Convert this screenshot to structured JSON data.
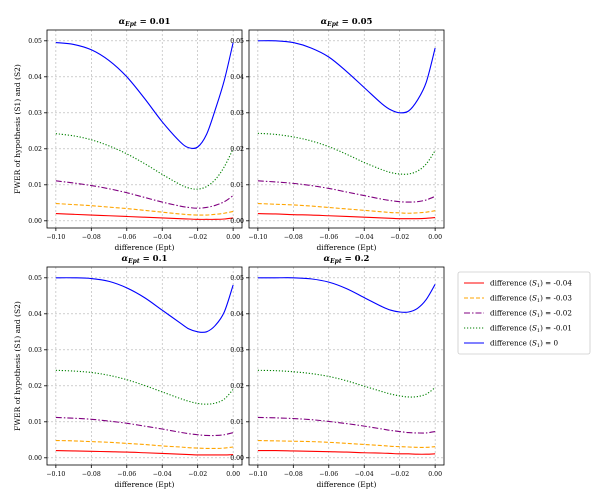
{
  "chart_data": [
    {
      "type": "line",
      "title": "α_Ept = 0.01",
      "title_base": "α",
      "title_sub": "Ept",
      "title_value": " = 0.01",
      "xlabel": "difference (Ept)",
      "ylabel": "FWER of hypothesis (S1) and (S2)",
      "xlim": [
        -0.105,
        0.005
      ],
      "ylim": [
        -0.002,
        0.053
      ],
      "xticks": [
        -0.1,
        -0.08,
        -0.06,
        -0.04,
        -0.02,
        0.0
      ],
      "xtick_labels": [
        "−0.10",
        "−0.08",
        "−0.06",
        "−0.04",
        "−0.02",
        "0.00"
      ],
      "yticks": [
        0.0,
        0.01,
        0.02,
        0.03,
        0.04,
        0.05
      ],
      "ytick_labels": [
        "0.00",
        "0.01",
        "0.02",
        "0.03",
        "0.04",
        "0.05"
      ],
      "grid": true,
      "x": [
        -0.1,
        -0.09,
        -0.08,
        -0.07,
        -0.06,
        -0.05,
        -0.04,
        -0.03,
        -0.025,
        -0.02,
        -0.015,
        -0.01,
        -0.005,
        0.0
      ],
      "series": [
        {
          "name": "difference (S1) = -0.04",
          "values": [
            0.002,
            0.0018,
            0.0016,
            0.0014,
            0.0012,
            0.001,
            0.0008,
            0.0006,
            0.0005,
            0.0004,
            0.0004,
            0.0004,
            0.0005,
            0.0008
          ]
        },
        {
          "name": "difference (S1) = -0.03",
          "values": [
            0.0048,
            0.0045,
            0.0042,
            0.0038,
            0.0034,
            0.0029,
            0.0024,
            0.0019,
            0.0017,
            0.0016,
            0.0016,
            0.0018,
            0.0021,
            0.0026
          ]
        },
        {
          "name": "difference (S1) = -0.02",
          "values": [
            0.0111,
            0.0105,
            0.0098,
            0.0089,
            0.0078,
            0.0065,
            0.0052,
            0.0041,
            0.0037,
            0.0035,
            0.0037,
            0.0043,
            0.0053,
            0.007
          ]
        },
        {
          "name": "difference (S1) = -0.01",
          "values": [
            0.0242,
            0.0236,
            0.0225,
            0.0208,
            0.0186,
            0.0159,
            0.0129,
            0.0101,
            0.0091,
            0.0088,
            0.0095,
            0.0115,
            0.015,
            0.02
          ]
        },
        {
          "name": "difference (S1) = 0",
          "values": [
            0.0495,
            0.049,
            0.0475,
            0.0445,
            0.04,
            0.034,
            0.0275,
            0.022,
            0.0203,
            0.0205,
            0.024,
            0.031,
            0.039,
            0.0495
          ]
        }
      ]
    },
    {
      "type": "line",
      "title": "α_Ept = 0.05",
      "title_base": "α",
      "title_sub": "Ept",
      "title_value": " = 0.05",
      "xlabel": "difference (Ept)",
      "ylabel": "",
      "xlim": [
        -0.105,
        0.005
      ],
      "ylim": [
        -0.002,
        0.053
      ],
      "xticks": [
        -0.1,
        -0.08,
        -0.06,
        -0.04,
        -0.02,
        0.0
      ],
      "xtick_labels": [
        "−0.10",
        "−0.08",
        "−0.06",
        "−0.04",
        "−0.02",
        "0.00"
      ],
      "yticks": [
        0.0,
        0.01,
        0.02,
        0.03,
        0.04,
        0.05
      ],
      "ytick_labels": [
        "0.00",
        "0.01",
        "0.02",
        "0.03",
        "0.04",
        "0.05"
      ],
      "grid": true,
      "x": [
        -0.1,
        -0.09,
        -0.08,
        -0.07,
        -0.06,
        -0.05,
        -0.04,
        -0.03,
        -0.025,
        -0.02,
        -0.015,
        -0.01,
        -0.005,
        0.0
      ],
      "series": [
        {
          "name": "difference (S1) = -0.04",
          "values": [
            0.002,
            0.0019,
            0.0017,
            0.0016,
            0.0014,
            0.0012,
            0.001,
            0.0008,
            0.0007,
            0.0006,
            0.0006,
            0.0006,
            0.0007,
            0.0009
          ]
        },
        {
          "name": "difference (S1) = -0.03",
          "values": [
            0.0048,
            0.0046,
            0.0044,
            0.0041,
            0.0037,
            0.0033,
            0.0029,
            0.0025,
            0.0023,
            0.0022,
            0.0021,
            0.0022,
            0.0024,
            0.0028
          ]
        },
        {
          "name": "difference (S1) = -0.02",
          "values": [
            0.0111,
            0.0108,
            0.0104,
            0.0098,
            0.009,
            0.008,
            0.007,
            0.006,
            0.0056,
            0.0053,
            0.0052,
            0.0053,
            0.0058,
            0.0068
          ]
        },
        {
          "name": "difference (S1) = -0.01",
          "values": [
            0.0243,
            0.024,
            0.0233,
            0.0222,
            0.0206,
            0.0185,
            0.0162,
            0.0142,
            0.0134,
            0.013,
            0.013,
            0.0138,
            0.0158,
            0.0195
          ]
        },
        {
          "name": "difference (S1) = 0",
          "values": [
            0.05,
            0.05,
            0.0495,
            0.048,
            0.0455,
            0.0415,
            0.037,
            0.0325,
            0.0308,
            0.03,
            0.0305,
            0.0335,
            0.0385,
            0.048
          ]
        }
      ]
    },
    {
      "type": "line",
      "title": "α_Ept = 0.1",
      "title_base": "α",
      "title_sub": "Ept",
      "title_value": " = 0.1",
      "xlabel": "difference (Ept)",
      "ylabel": "FWER of hypothesis (S1) and (S2)",
      "xlim": [
        -0.105,
        0.005
      ],
      "ylim": [
        -0.002,
        0.053
      ],
      "xticks": [
        -0.1,
        -0.08,
        -0.06,
        -0.04,
        -0.02,
        0.0
      ],
      "xtick_labels": [
        "−0.10",
        "−0.08",
        "−0.06",
        "−0.04",
        "−0.02",
        "0.00"
      ],
      "yticks": [
        0.0,
        0.01,
        0.02,
        0.03,
        0.04,
        0.05
      ],
      "ytick_labels": [
        "0.00",
        "0.01",
        "0.02",
        "0.03",
        "0.04",
        "0.05"
      ],
      "grid": true,
      "x": [
        -0.1,
        -0.09,
        -0.08,
        -0.07,
        -0.06,
        -0.05,
        -0.04,
        -0.03,
        -0.025,
        -0.02,
        -0.015,
        -0.01,
        -0.005,
        0.0
      ],
      "series": [
        {
          "name": "difference (S1) = -0.04",
          "values": [
            0.002,
            0.0019,
            0.0018,
            0.0017,
            0.0016,
            0.0014,
            0.0012,
            0.001,
            0.0009,
            0.0008,
            0.0008,
            0.0008,
            0.0008,
            0.0009
          ]
        },
        {
          "name": "difference (S1) = -0.03",
          "values": [
            0.0048,
            0.0047,
            0.0045,
            0.0043,
            0.004,
            0.0037,
            0.0033,
            0.003,
            0.0028,
            0.0027,
            0.0026,
            0.0026,
            0.0027,
            0.003
          ]
        },
        {
          "name": "difference (S1) = -0.02",
          "values": [
            0.0112,
            0.011,
            0.0107,
            0.0102,
            0.0096,
            0.0088,
            0.008,
            0.0071,
            0.0067,
            0.0064,
            0.0062,
            0.0062,
            0.0064,
            0.007
          ]
        },
        {
          "name": "difference (S1) = -0.01",
          "values": [
            0.0243,
            0.0241,
            0.0237,
            0.0229,
            0.0217,
            0.0201,
            0.0183,
            0.0165,
            0.0157,
            0.0151,
            0.0149,
            0.0152,
            0.0163,
            0.019
          ]
        },
        {
          "name": "difference (S1) = 0",
          "values": [
            0.05,
            0.05,
            0.0498,
            0.049,
            0.0472,
            0.0445,
            0.041,
            0.0375,
            0.0358,
            0.035,
            0.035,
            0.0368,
            0.0405,
            0.048
          ]
        }
      ]
    },
    {
      "type": "line",
      "title": "α_Ept = 0.2",
      "title_base": "α",
      "title_sub": "Ept",
      "title_value": " = 0.2",
      "xlabel": "difference (Ept)",
      "ylabel": "",
      "xlim": [
        -0.105,
        0.005
      ],
      "ylim": [
        -0.002,
        0.053
      ],
      "xticks": [
        -0.1,
        -0.08,
        -0.06,
        -0.04,
        -0.02,
        0.0
      ],
      "xtick_labels": [
        "−0.10",
        "−0.08",
        "−0.06",
        "−0.04",
        "−0.02",
        "0.00"
      ],
      "yticks": [
        0.0,
        0.01,
        0.02,
        0.03,
        0.04,
        0.05
      ],
      "ytick_labels": [
        "0.00",
        "0.01",
        "0.02",
        "0.03",
        "0.04",
        "0.05"
      ],
      "grid": true,
      "x": [
        -0.1,
        -0.09,
        -0.08,
        -0.07,
        -0.06,
        -0.05,
        -0.04,
        -0.03,
        -0.025,
        -0.02,
        -0.015,
        -0.01,
        -0.005,
        0.0
      ],
      "series": [
        {
          "name": "difference (S1) = -0.04",
          "values": [
            0.002,
            0.002,
            0.0019,
            0.0018,
            0.0017,
            0.0016,
            0.0014,
            0.0013,
            0.0012,
            0.0011,
            0.0011,
            0.001,
            0.001,
            0.0011
          ]
        },
        {
          "name": "difference (S1) = -0.03",
          "values": [
            0.0048,
            0.0047,
            0.0046,
            0.0045,
            0.0043,
            0.004,
            0.0037,
            0.0034,
            0.0032,
            0.0031,
            0.003,
            0.0029,
            0.0029,
            0.0031
          ]
        },
        {
          "name": "difference (S1) = -0.02",
          "values": [
            0.0112,
            0.0111,
            0.0109,
            0.0106,
            0.0101,
            0.0095,
            0.0088,
            0.008,
            0.0076,
            0.0073,
            0.007,
            0.0069,
            0.0069,
            0.0073
          ]
        },
        {
          "name": "difference (S1) = -0.01",
          "values": [
            0.0243,
            0.0242,
            0.0239,
            0.0234,
            0.0226,
            0.0214,
            0.0199,
            0.0184,
            0.0177,
            0.0172,
            0.0169,
            0.017,
            0.0177,
            0.0195
          ]
        },
        {
          "name": "difference (S1) = 0",
          "values": [
            0.05,
            0.05,
            0.05,
            0.0497,
            0.0488,
            0.047,
            0.0445,
            0.042,
            0.041,
            0.0405,
            0.0405,
            0.0415,
            0.044,
            0.0482
          ]
        }
      ]
    }
  ],
  "legend": {
    "placement": "right",
    "entries": [
      {
        "label": "difference (S1) = -0.04",
        "base": "difference (",
        "sym": "S",
        "sub": "1",
        "tail": ") = -0.04",
        "color": "#ff0000",
        "dash": "solid"
      },
      {
        "label": "difference (S1) = -0.03",
        "base": "difference (",
        "sym": "S",
        "sub": "1",
        "tail": ") = -0.03",
        "color": "#ffa500",
        "dash": "dashed"
      },
      {
        "label": "difference (S1) = -0.02",
        "base": "difference (",
        "sym": "S",
        "sub": "1",
        "tail": ") = -0.02",
        "color": "#800080",
        "dash": "dashdot"
      },
      {
        "label": "difference (S1) = -0.01",
        "base": "difference (",
        "sym": "S",
        "sub": "1",
        "tail": ") = -0.01",
        "color": "#008000",
        "dash": "dotted"
      },
      {
        "label": "difference (S1) = 0",
        "base": "difference (",
        "sym": "S",
        "sub": "1",
        "tail": ") = 0",
        "color": "#0000ff",
        "dash": "solid"
      }
    ]
  }
}
